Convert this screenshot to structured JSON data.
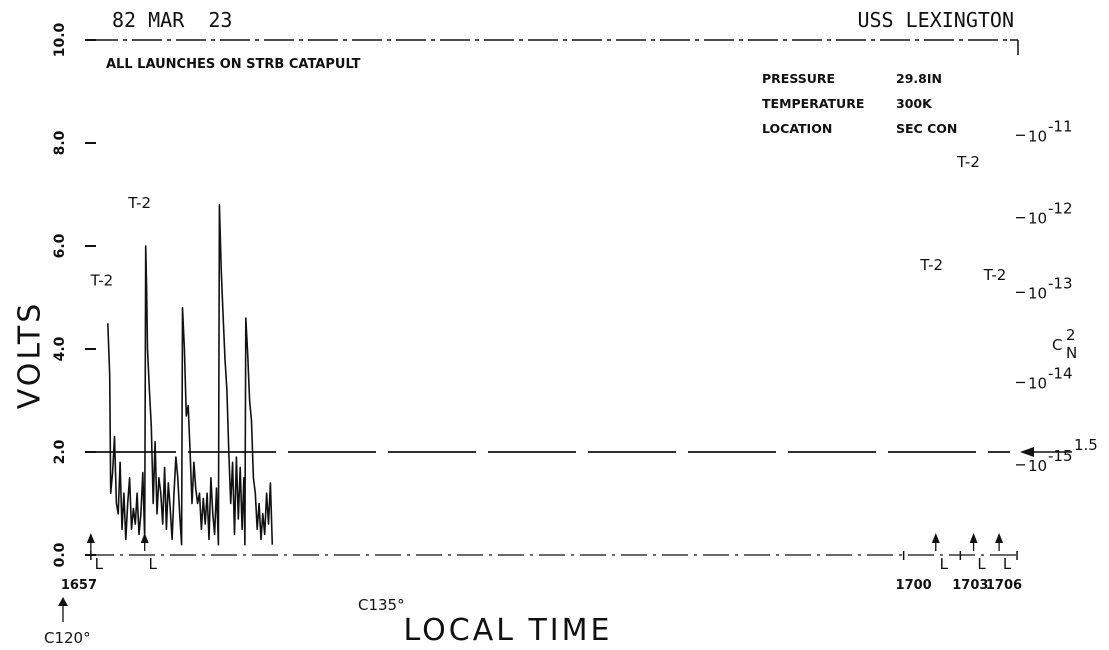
{
  "header": {
    "date": "82 MAR  23",
    "ship": "USS LEXINGTON",
    "note": "ALL LAUNCHES ON STRB CATAPULT"
  },
  "conditions": [
    {
      "label": "PRESSURE",
      "value": "29.8IN"
    },
    {
      "label": "TEMPERATURE",
      "value": "300K"
    },
    {
      "label": "LOCATION",
      "value": "SEC CON"
    }
  ],
  "chart_data": {
    "type": "line",
    "xlabel": "LOCAL TIME",
    "ylabel": "VOLTS",
    "ylim": [
      0,
      10
    ],
    "xlim": [
      1656.85,
      1706.05
    ],
    "y_ticks": [
      "0.0",
      "2.0",
      "4.0",
      "6.0",
      "8.0",
      "10.0"
    ],
    "x_ticks": [
      "1657",
      "1700",
      "1703",
      "1706"
    ],
    "right_axis": {
      "label": "C",
      "label_super": "2",
      "label_sub": "N",
      "ticks": [
        {
          "y": 1.75,
          "base": "10",
          "exp": "-15"
        },
        {
          "y": 3.35,
          "base": "10",
          "exp": "-14"
        },
        {
          "y": 5.1,
          "base": "10",
          "exp": "-13"
        },
        {
          "y": 6.55,
          "base": "10",
          "exp": "-12"
        },
        {
          "y": 8.15,
          "base": "10",
          "exp": "-11"
        }
      ],
      "marker": {
        "y": 2.0,
        "text": "1.5"
      }
    },
    "launch_marks": [
      1657,
      1659.85,
      1701.7,
      1703.7,
      1705.05
    ],
    "launch_label": "L",
    "peak_label": "T-2",
    "peaks": [
      {
        "x": 1657.9,
        "y": 4.5
      },
      {
        "x": 1659.9,
        "y": 6.0
      },
      {
        "x": 1701.8,
        "y": 4.8
      },
      {
        "x": 1703.75,
        "y": 6.8
      },
      {
        "x": 1705.15,
        "y": 4.6
      }
    ],
    "dashed_level": 2.0,
    "annotations": [
      "C120°",
      "C135°"
    ],
    "series": [
      {
        "x": [
          1657.9,
          1658.0,
          1658.05,
          1658.15,
          1658.25,
          1658.35,
          1658.45,
          1658.55,
          1658.65,
          1658.75,
          1658.85,
          1658.95,
          1659.05,
          1659.15,
          1659.25,
          1659.35,
          1659.45,
          1659.55,
          1659.65,
          1659.75,
          1659.85,
          1659.9,
          1659.95,
          1660.0,
          1660.1,
          1660.2,
          1660.3,
          1660.4,
          1660.5,
          1660.6,
          1660.7,
          1660.8,
          1660.9,
          1661.0,
          1661.1,
          1661.2,
          1661.3,
          1661.4,
          1661.5,
          1661.6,
          1661.7,
          1661.8,
          1661.85,
          1661.95,
          1662.05,
          1662.15,
          1662.25,
          1662.35,
          1662.45,
          1662.55,
          1662.65,
          1662.75,
          1662.85,
          1662.95,
          1663.05,
          1663.15,
          1663.25,
          1663.35,
          1663.45,
          1663.55,
          1663.65,
          1663.75,
          1663.8,
          1663.9,
          1664.0,
          1664.1,
          1664.2,
          1664.3,
          1664.4,
          1664.5,
          1664.6,
          1664.7,
          1664.8,
          1664.9,
          1665.0,
          1665.1,
          1665.15,
          1665.2,
          1665.3,
          1665.4,
          1665.5,
          1665.6,
          1665.7,
          1665.8,
          1665.9,
          1666.0,
          1666.1,
          1666.2,
          1666.3,
          1666.4,
          1666.5,
          1666.6
        ],
        "y": [
          4.5,
          3.5,
          1.2,
          1.6,
          2.3,
          1.0,
          0.8,
          1.8,
          0.5,
          1.2,
          0.3,
          1.0,
          1.5,
          0.5,
          0.9,
          0.6,
          1.2,
          0.4,
          0.8,
          1.6,
          0.3,
          6.0,
          5.2,
          4.0,
          3.2,
          2.5,
          1.0,
          2.2,
          0.8,
          1.5,
          1.2,
          0.6,
          1.7,
          0.5,
          1.4,
          0.9,
          0.3,
          1.2,
          1.9,
          1.5,
          0.8,
          0.2,
          4.8,
          4.0,
          2.7,
          2.9,
          2.0,
          1.0,
          1.8,
          1.3,
          1.0,
          1.2,
          0.5,
          1.1,
          0.6,
          1.2,
          0.3,
          1.5,
          0.8,
          0.4,
          1.3,
          0.2,
          6.8,
          5.5,
          4.6,
          3.8,
          3.2,
          2.0,
          1.0,
          1.8,
          0.4,
          1.9,
          0.7,
          1.7,
          0.5,
          1.5,
          0.2,
          4.6,
          3.9,
          3.0,
          2.6,
          1.5,
          1.2,
          0.5,
          1.0,
          0.3,
          0.8,
          0.4,
          1.2,
          0.6,
          1.4,
          0.2
        ]
      }
    ]
  }
}
